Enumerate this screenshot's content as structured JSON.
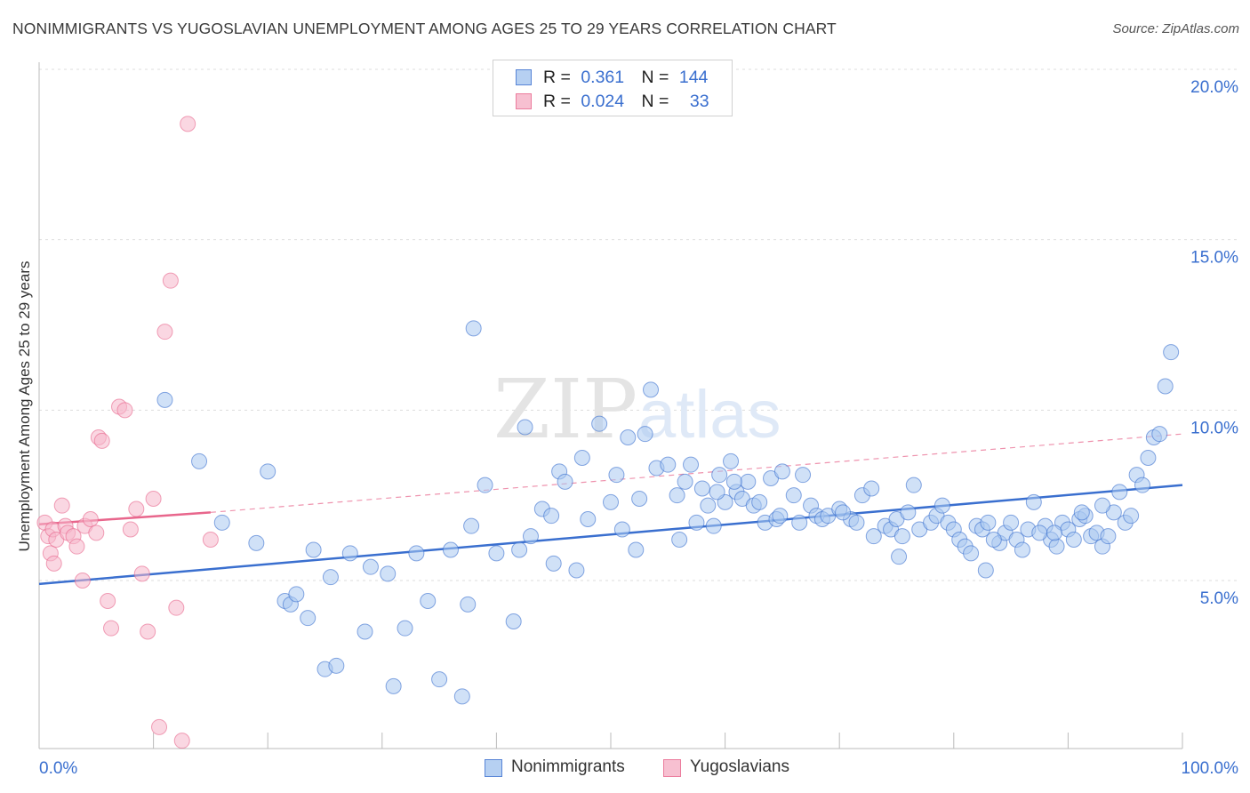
{
  "title": "NONIMMIGRANTS VS YUGOSLAVIAN UNEMPLOYMENT AMONG AGES 25 TO 29 YEARS CORRELATION CHART",
  "source": "Source: ZipAtlas.com",
  "watermark": {
    "zip": "ZIP",
    "atlas": "atlas"
  },
  "colors": {
    "blue": "#3a6fcf",
    "blue_fill": "#aac8f0",
    "pink": "#e8668c",
    "pink_fill": "#f6b6ca",
    "grid": "#dddddd",
    "label_blue": "#3a6fcf"
  },
  "legend": {
    "rows": [
      {
        "r_label": "R =",
        "r_value": "0.361",
        "n_label": "N =",
        "n_value": "144"
      },
      {
        "r_label": "R =",
        "r_value": "0.024",
        "n_label": "N =",
        "n_value": "33"
      }
    ]
  },
  "bottom_legend": {
    "series1": "Nonimmigrants",
    "series2": "Yugoslavians"
  },
  "chart_data": {
    "type": "scatter",
    "title": "NONIMMIGRANTS VS YUGOSLAVIAN UNEMPLOYMENT AMONG AGES 25 TO 29 YEARS CORRELATION CHART",
    "xlabel": "",
    "ylabel": "Unemployment Among Ages 25 to 29 years",
    "xlim": [
      0,
      100
    ],
    "ylim": [
      0,
      20.5
    ],
    "x_tick_labels": [
      "0.0%",
      "100.0%"
    ],
    "y_ticks": [
      5,
      10,
      15,
      20
    ],
    "y_tick_labels": [
      "5.0%",
      "10.0%",
      "15.0%",
      "20.0%"
    ],
    "grid": true,
    "series": [
      {
        "name": "Nonimmigrants",
        "r": 0.361,
        "n": 144,
        "trend": {
          "x": [
            0,
            100
          ],
          "y": [
            4.9,
            7.8
          ],
          "style": "solid"
        },
        "points": [
          [
            11,
            10.3
          ],
          [
            14,
            8.5
          ],
          [
            16,
            6.7
          ],
          [
            19,
            6.1
          ],
          [
            20,
            8.2
          ],
          [
            21.5,
            4.4
          ],
          [
            22,
            4.3
          ],
          [
            22.5,
            4.6
          ],
          [
            23.5,
            3.9
          ],
          [
            24,
            5.9
          ],
          [
            25,
            2.4
          ],
          [
            26,
            2.5
          ],
          [
            27.2,
            5.8
          ],
          [
            28.5,
            3.5
          ],
          [
            29,
            5.4
          ],
          [
            31,
            1.9
          ],
          [
            32,
            3.6
          ],
          [
            33,
            5.8
          ],
          [
            34,
            4.4
          ],
          [
            35,
            2.1
          ],
          [
            36,
            5.9
          ],
          [
            37,
            1.6
          ],
          [
            37.5,
            4.3
          ],
          [
            38,
            12.4
          ],
          [
            39,
            7.8
          ],
          [
            40,
            5.8
          ],
          [
            41.5,
            3.8
          ],
          [
            42,
            5.9
          ],
          [
            42.5,
            9.5
          ],
          [
            43,
            6.3
          ],
          [
            44,
            7.1
          ],
          [
            45,
            5.5
          ],
          [
            45.5,
            8.2
          ],
          [
            46,
            7.9
          ],
          [
            47,
            5.3
          ],
          [
            47.5,
            8.6
          ],
          [
            48,
            6.8
          ],
          [
            49,
            9.6
          ],
          [
            50,
            7.3
          ],
          [
            50.5,
            8.1
          ],
          [
            51,
            6.5
          ],
          [
            51.5,
            9.2
          ],
          [
            52.5,
            7.4
          ],
          [
            53,
            9.3
          ],
          [
            53.5,
            10.6
          ],
          [
            54,
            8.3
          ],
          [
            55,
            8.4
          ],
          [
            55.8,
            7.5
          ],
          [
            56.5,
            7.9
          ],
          [
            57,
            8.4
          ],
          [
            57.5,
            6.7
          ],
          [
            58.5,
            7.2
          ],
          [
            59,
            6.6
          ],
          [
            59.5,
            8.1
          ],
          [
            60,
            7.3
          ],
          [
            60.5,
            8.5
          ],
          [
            61,
            7.6
          ],
          [
            61.5,
            7.4
          ],
          [
            62,
            7.9
          ],
          [
            62.5,
            7.2
          ],
          [
            63,
            7.3
          ],
          [
            63.5,
            6.7
          ],
          [
            64,
            8.0
          ],
          [
            64.5,
            6.8
          ],
          [
            65,
            8.2
          ],
          [
            66,
            7.5
          ],
          [
            66.5,
            6.7
          ],
          [
            67.5,
            7.2
          ],
          [
            68,
            6.9
          ],
          [
            68.5,
            6.8
          ],
          [
            69,
            6.9
          ],
          [
            70,
            7.1
          ],
          [
            71,
            6.8
          ],
          [
            71.5,
            6.7
          ],
          [
            72,
            7.5
          ],
          [
            73,
            6.3
          ],
          [
            74,
            6.6
          ],
          [
            74.5,
            6.5
          ],
          [
            75,
            6.8
          ],
          [
            75.5,
            6.3
          ],
          [
            76,
            7.0
          ],
          [
            76.5,
            7.8
          ],
          [
            77,
            6.5
          ],
          [
            78,
            6.7
          ],
          [
            78.5,
            6.9
          ],
          [
            79.5,
            6.7
          ],
          [
            80,
            6.5
          ],
          [
            80.5,
            6.2
          ],
          [
            81,
            6.0
          ],
          [
            81.5,
            5.8
          ],
          [
            82,
            6.6
          ],
          [
            82.5,
            6.5
          ],
          [
            83,
            6.7
          ],
          [
            84,
            6.1
          ],
          [
            84.5,
            6.4
          ],
          [
            85,
            6.7
          ],
          [
            85.5,
            6.2
          ],
          [
            86,
            5.9
          ],
          [
            86.5,
            6.5
          ],
          [
            87,
            7.3
          ],
          [
            88,
            6.6
          ],
          [
            88.5,
            6.2
          ],
          [
            89,
            6.0
          ],
          [
            89.5,
            6.7
          ],
          [
            90,
            6.5
          ],
          [
            90.5,
            6.2
          ],
          [
            91,
            6.8
          ],
          [
            91.5,
            6.9
          ],
          [
            92,
            6.3
          ],
          [
            92.5,
            6.4
          ],
          [
            93,
            6.0
          ],
          [
            93.5,
            6.3
          ],
          [
            94,
            7.0
          ],
          [
            94.5,
            7.6
          ],
          [
            95,
            6.7
          ],
          [
            95.5,
            6.9
          ],
          [
            96,
            8.1
          ],
          [
            96.5,
            7.8
          ],
          [
            97,
            8.6
          ],
          [
            97.5,
            9.2
          ],
          [
            98,
            9.3
          ],
          [
            98.5,
            10.7
          ],
          [
            99,
            11.7
          ],
          [
            59.3,
            7.6
          ],
          [
            60.8,
            7.9
          ],
          [
            66.8,
            8.1
          ],
          [
            70.3,
            7.0
          ],
          [
            72.8,
            7.7
          ],
          [
            79.0,
            7.2
          ],
          [
            83.5,
            6.2
          ],
          [
            87.5,
            6.4
          ],
          [
            91.2,
            7.0
          ],
          [
            25.5,
            5.1
          ],
          [
            30.5,
            5.2
          ],
          [
            37.8,
            6.6
          ],
          [
            44.8,
            6.9
          ],
          [
            52.2,
            5.9
          ],
          [
            56.0,
            6.2
          ],
          [
            58.0,
            7.7
          ],
          [
            64.8,
            6.9
          ],
          [
            75.2,
            5.7
          ],
          [
            88.8,
            6.4
          ],
          [
            93.0,
            7.2
          ],
          [
            82.8,
            5.3
          ]
        ]
      },
      {
        "name": "Yugoslavians",
        "r": 0.024,
        "n": 33,
        "trend": {
          "x": [
            0,
            15
          ],
          "y": [
            6.65,
            7.0
          ],
          "style": "solid"
        },
        "trend_extension": {
          "x": [
            15,
            100
          ],
          "y": [
            7.0,
            9.3
          ],
          "style": "dashed"
        },
        "points": [
          [
            0.5,
            6.7
          ],
          [
            0.8,
            6.3
          ],
          [
            1.0,
            5.8
          ],
          [
            1.2,
            6.5
          ],
          [
            1.5,
            6.2
          ],
          [
            2.0,
            7.2
          ],
          [
            2.3,
            6.6
          ],
          [
            2.5,
            6.4
          ],
          [
            3.0,
            6.3
          ],
          [
            3.3,
            6.0
          ],
          [
            3.8,
            5.0
          ],
          [
            4.0,
            6.6
          ],
          [
            4.5,
            6.8
          ],
          [
            5.0,
            6.4
          ],
          [
            5.2,
            9.2
          ],
          [
            5.5,
            9.1
          ],
          [
            6.0,
            4.4
          ],
          [
            6.3,
            3.6
          ],
          [
            7.0,
            10.1
          ],
          [
            7.5,
            10.0
          ],
          [
            8.0,
            6.5
          ],
          [
            8.5,
            7.1
          ],
          [
            9.0,
            5.2
          ],
          [
            9.5,
            3.5
          ],
          [
            10.0,
            7.4
          ],
          [
            10.5,
            0.7
          ],
          [
            11.0,
            12.3
          ],
          [
            11.5,
            13.8
          ],
          [
            12.0,
            4.2
          ],
          [
            12.5,
            0.3
          ],
          [
            13.0,
            18.4
          ],
          [
            15.0,
            6.2
          ],
          [
            1.3,
            5.5
          ]
        ]
      }
    ]
  }
}
